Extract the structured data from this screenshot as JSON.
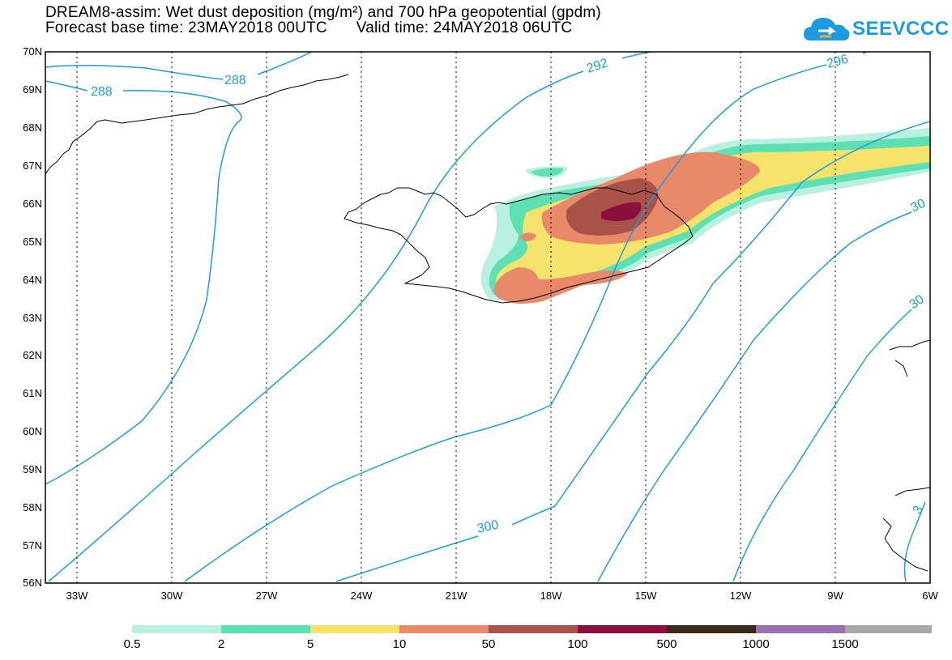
{
  "header": {
    "title_line1": "DREAM8-assim: Wet dust deposition (mg/m²) and 700 hPa geopotential (gpdm)",
    "base_time": "Forecast base time: 23MAY2018 00UTC",
    "valid_time": "Valid time: 24MAY2018 06UTC"
  },
  "logo": {
    "text": "SEEVCCC",
    "icon": "cloud-logo-icon"
  },
  "map": {
    "lon_ticks": [
      "33W",
      "30W",
      "27W",
      "24W",
      "21W",
      "18W",
      "15W",
      "12W",
      "9W",
      "6W"
    ],
    "lat_ticks": [
      "70N",
      "69N",
      "68N",
      "67N",
      "66N",
      "65N",
      "64N",
      "63N",
      "62N",
      "61N",
      "60N",
      "59N",
      "58N",
      "57N",
      "56N"
    ],
    "lon_range": [
      -34,
      -6
    ],
    "lat_range": [
      56,
      70
    ],
    "contour_labels": [
      "288",
      "288",
      "292",
      "296",
      "300",
      "30",
      "30",
      "3"
    ],
    "contour_color": "#1e9be0",
    "coastline_color": "#000000"
  },
  "legend": {
    "colors": [
      "#b9f0e2",
      "#5fe0b3",
      "#f5e36b",
      "#e8896a",
      "#a8524a",
      "#8a0f3a",
      "#3a2a1a",
      "#9a6fae",
      "#a9a9a9"
    ],
    "labels": [
      "0.5",
      "2",
      "5",
      "10",
      "50",
      "100",
      "500",
      "1000",
      "1500"
    ]
  }
}
